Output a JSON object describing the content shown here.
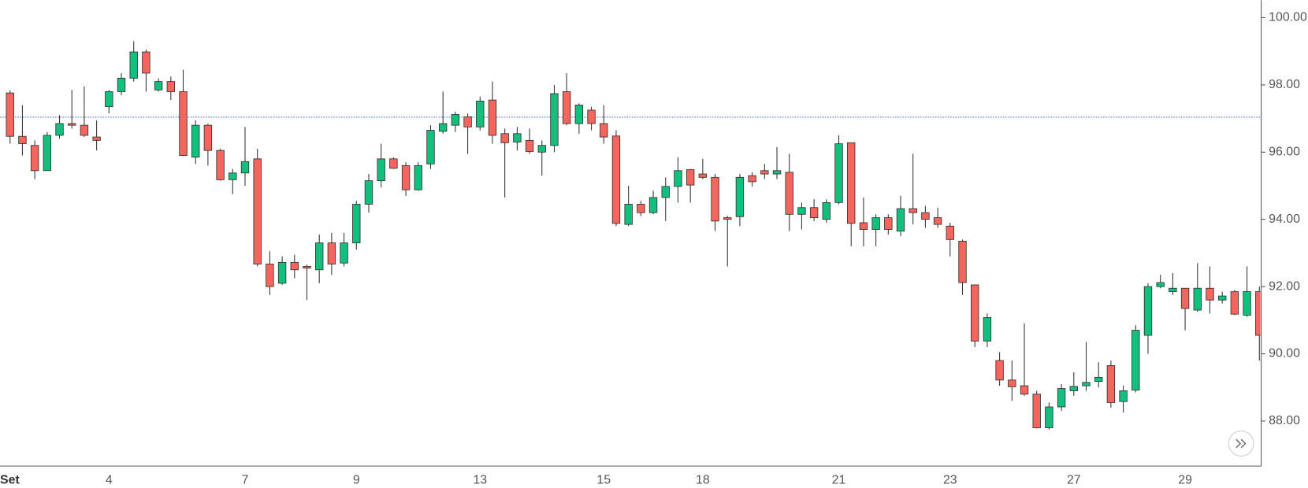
{
  "chart_data": {
    "type": "candlestick",
    "categories": [
      "Set",
      null,
      null,
      null,
      null,
      null,
      null,
      null,
      "4",
      null,
      null,
      null,
      null,
      null,
      null,
      null,
      null,
      null,
      null,
      "7",
      null,
      null,
      null,
      null,
      null,
      null,
      null,
      null,
      "9",
      null,
      null,
      null,
      null,
      null,
      null,
      null,
      null,
      null,
      "13",
      null,
      null,
      null,
      null,
      null,
      null,
      null,
      null,
      null,
      "15",
      null,
      null,
      null,
      null,
      null,
      null,
      null,
      "18",
      null,
      null,
      null,
      null,
      null,
      null,
      null,
      null,
      null,
      null,
      "21",
      null,
      null,
      null,
      null,
      null,
      null,
      null,
      null,
      "23",
      null,
      null,
      null,
      null,
      null,
      null,
      null,
      null,
      null,
      "27",
      null,
      null,
      null,
      null,
      null,
      null,
      null,
      null,
      "29",
      null,
      null,
      null,
      null,
      null,
      null
    ],
    "open": [
      97.76,
      96.47,
      96.2,
      95.45,
      96.5,
      96.85,
      96.8,
      96.45,
      97.35,
      97.8,
      98.2,
      98.98,
      97.85,
      98.1,
      97.8,
      95.85,
      96.8,
      96.05,
      95.18,
      95.38,
      95.8,
      92.67,
      92.1,
      92.72,
      92.6,
      92.5,
      93.3,
      92.7,
      93.3,
      94.45,
      95.15,
      95.8,
      95.6,
      94.88,
      95.65,
      96.62,
      96.8,
      97.05,
      96.75,
      97.55,
      96.55,
      96.3,
      96.35,
      96.0,
      96.2,
      97.8,
      96.85,
      97.25,
      96.85,
      96.48,
      93.85,
      94.45,
      94.2,
      94.65,
      94.98,
      95.48,
      95.35,
      95.25,
      94.05,
      94.08,
      95.3,
      95.45,
      95.35,
      95.4,
      94.15,
      94.35,
      94.0,
      94.5,
      96.28,
      93.9,
      93.7,
      94.05,
      93.65,
      94.32,
      94.2,
      94.05,
      93.8,
      93.35,
      92.05,
      90.38,
      89.8,
      89.22,
      89.05,
      88.8,
      87.8,
      88.42,
      88.9,
      89.05,
      89.18,
      89.65,
      88.58,
      88.92,
      90.55,
      92.0,
      91.85,
      91.95,
      91.3,
      91.95,
      91.6,
      91.85,
      91.15,
      91.85
    ],
    "high": [
      97.84,
      97.4,
      96.35,
      96.6,
      97.1,
      97.85,
      97.95,
      96.95,
      97.85,
      98.35,
      99.3,
      99.05,
      98.2,
      98.25,
      98.45,
      96.95,
      96.85,
      96.1,
      95.5,
      96.75,
      96.1,
      93.05,
      92.9,
      92.95,
      92.65,
      93.55,
      93.6,
      93.6,
      94.55,
      95.35,
      96.25,
      95.85,
      95.7,
      95.7,
      96.8,
      97.8,
      97.2,
      97.15,
      97.65,
      98.1,
      96.7,
      96.75,
      96.7,
      96.35,
      98.0,
      98.35,
      97.45,
      97.35,
      97.4,
      96.65,
      95.0,
      94.55,
      94.85,
      95.25,
      95.85,
      95.5,
      95.8,
      95.35,
      94.1,
      95.35,
      95.4,
      95.65,
      96.15,
      95.95,
      94.5,
      94.6,
      94.6,
      96.5,
      96.28,
      94.65,
      94.15,
      94.15,
      94.7,
      95.95,
      94.4,
      94.35,
      93.9,
      93.4,
      92.05,
      91.2,
      90.05,
      89.8,
      90.9,
      88.9,
      88.55,
      89.1,
      89.45,
      90.35,
      89.75,
      89.8,
      89.05,
      90.85,
      92.1,
      92.35,
      92.4,
      91.95,
      92.7,
      92.6,
      91.85,
      91.9,
      92.6,
      92.0
    ],
    "low": [
      96.25,
      95.9,
      95.2,
      95.45,
      96.4,
      96.7,
      96.45,
      96.05,
      97.15,
      97.7,
      98.1,
      97.8,
      97.8,
      97.55,
      95.9,
      95.65,
      95.6,
      95.15,
      94.75,
      95.0,
      92.6,
      91.75,
      92.05,
      92.25,
      91.6,
      92.1,
      92.35,
      92.6,
      93.1,
      94.2,
      94.95,
      95.5,
      94.7,
      94.85,
      95.5,
      96.55,
      96.6,
      95.95,
      96.65,
      96.25,
      94.65,
      96.05,
      95.95,
      95.3,
      96.0,
      96.8,
      96.55,
      96.65,
      96.25,
      93.8,
      93.8,
      94.1,
      94.15,
      93.95,
      94.5,
      94.5,
      95.2,
      93.65,
      92.6,
      93.8,
      94.98,
      95.2,
      95.2,
      93.65,
      93.7,
      93.95,
      93.9,
      94.45,
      93.2,
      93.2,
      93.2,
      93.55,
      93.5,
      93.85,
      93.75,
      93.75,
      92.9,
      91.75,
      90.2,
      90.2,
      89.05,
      88.6,
      88.75,
      87.78,
      87.75,
      88.3,
      88.75,
      88.9,
      89.0,
      88.4,
      88.25,
      88.85,
      90.0,
      91.95,
      91.75,
      90.7,
      91.25,
      91.2,
      91.5,
      91.15,
      91.1,
      89.8
    ],
    "close": [
      96.47,
      96.25,
      95.45,
      96.5,
      96.85,
      96.8,
      96.5,
      96.35,
      97.8,
      98.2,
      98.98,
      98.35,
      98.1,
      97.8,
      95.9,
      96.8,
      96.05,
      95.18,
      95.38,
      95.72,
      92.67,
      92.0,
      92.72,
      92.5,
      92.55,
      93.3,
      92.67,
      93.3,
      94.45,
      95.15,
      95.8,
      95.52,
      94.88,
      95.6,
      96.65,
      96.85,
      97.12,
      96.75,
      97.52,
      96.5,
      96.28,
      96.55,
      96.02,
      96.2,
      97.74,
      96.85,
      97.4,
      96.85,
      96.45,
      93.88,
      94.45,
      94.2,
      94.65,
      94.98,
      95.45,
      95.02,
      95.25,
      93.95,
      94.0,
      95.25,
      95.12,
      95.35,
      95.45,
      94.15,
      94.35,
      94.05,
      94.5,
      96.25,
      93.88,
      93.7,
      94.05,
      93.7,
      94.32,
      94.2,
      94.0,
      93.85,
      93.4,
      92.12,
      90.38,
      91.08,
      89.22,
      89.02,
      88.8,
      87.8,
      88.42,
      88.97,
      89.03,
      89.15,
      89.3,
      88.55,
      88.9,
      90.7,
      92.0,
      92.12,
      91.95,
      91.35,
      91.95,
      91.6,
      91.72,
      91.18,
      91.85,
      90.55
    ],
    "up_color": "#12c07e",
    "down_color": "#f4655d",
    "price_line": 97.04,
    "price_line_color": "#3e5fd6",
    "ylim": [
      86.66,
      100.52
    ],
    "yticks": [
      {
        "value": 88,
        "label": "88.00"
      },
      {
        "value": 90,
        "label": "90.00"
      },
      {
        "value": 92,
        "label": "92.00"
      },
      {
        "value": 94,
        "label": "94.00"
      },
      {
        "value": 96,
        "label": "96.00"
      },
      {
        "value": 98,
        "label": "98.00"
      },
      {
        "value": 100,
        "label": "100.00"
      }
    ],
    "grid": false
  }
}
